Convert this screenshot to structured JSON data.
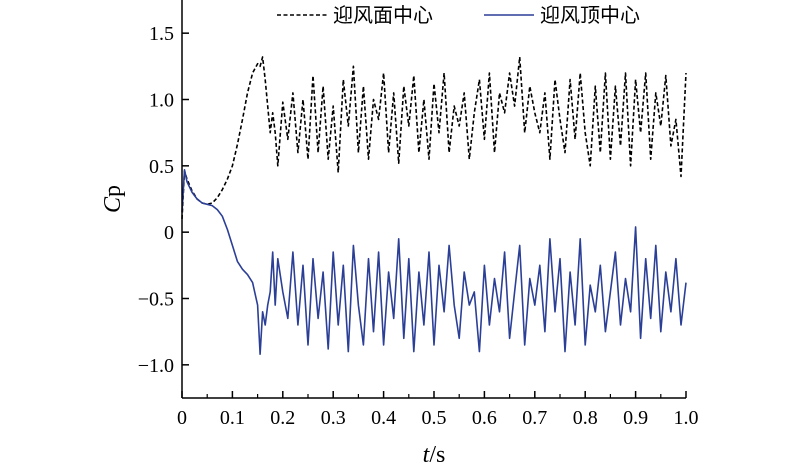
{
  "chart_data": {
    "type": "line",
    "xlabel_italic": "t",
    "xlabel_unit": "/s",
    "ylabel_main": "C",
    "ylabel_sub": "p",
    "xlim": [
      0,
      1.0
    ],
    "ylim": [
      -1.25,
      1.75
    ],
    "xticks": [
      0,
      0.1,
      0.2,
      0.3,
      0.4,
      0.5,
      0.6,
      0.7,
      0.8,
      0.9,
      1.0
    ],
    "xtick_labels": [
      "0",
      "0.1",
      "0.2",
      "0.3",
      "0.4",
      "0.5",
      "0.6",
      "0.7",
      "0.8",
      "0.9",
      "1.0"
    ],
    "yticks": [
      1.5,
      1.0,
      0.5,
      0,
      -0.5,
      -1.0
    ],
    "ytick_labels": [
      "1.5",
      "1.0",
      "0.5",
      "0",
      "−0.5",
      "−1.0"
    ],
    "grid": false,
    "legend_position": "top",
    "series": [
      {
        "name": "迎风面中心",
        "color": "#000000",
        "dash": "dashed",
        "x": [
          0.0,
          0.005,
          0.01,
          0.02,
          0.03,
          0.04,
          0.05,
          0.06,
          0.07,
          0.08,
          0.09,
          0.1,
          0.11,
          0.12,
          0.13,
          0.14,
          0.15,
          0.155,
          0.16,
          0.165,
          0.17,
          0.175,
          0.18,
          0.185,
          0.19,
          0.2,
          0.21,
          0.22,
          0.23,
          0.24,
          0.25,
          0.26,
          0.27,
          0.28,
          0.29,
          0.3,
          0.31,
          0.32,
          0.33,
          0.34,
          0.35,
          0.36,
          0.37,
          0.38,
          0.39,
          0.4,
          0.41,
          0.42,
          0.43,
          0.44,
          0.45,
          0.46,
          0.47,
          0.48,
          0.49,
          0.5,
          0.51,
          0.52,
          0.53,
          0.54,
          0.55,
          0.56,
          0.57,
          0.58,
          0.59,
          0.6,
          0.61,
          0.62,
          0.63,
          0.64,
          0.65,
          0.66,
          0.67,
          0.68,
          0.69,
          0.7,
          0.71,
          0.72,
          0.73,
          0.74,
          0.75,
          0.76,
          0.77,
          0.78,
          0.79,
          0.8,
          0.81,
          0.82,
          0.83,
          0.84,
          0.85,
          0.86,
          0.87,
          0.88,
          0.89,
          0.9,
          0.91,
          0.92,
          0.93,
          0.94,
          0.95,
          0.96,
          0.97,
          0.98,
          0.99,
          1.0
        ],
        "y": [
          0.1,
          0.46,
          0.4,
          0.31,
          0.25,
          0.22,
          0.21,
          0.22,
          0.26,
          0.32,
          0.4,
          0.5,
          0.66,
          0.85,
          1.05,
          1.2,
          1.27,
          1.25,
          1.32,
          1.15,
          0.95,
          0.75,
          0.9,
          0.75,
          0.5,
          0.98,
          0.7,
          1.05,
          0.6,
          1.0,
          0.55,
          1.18,
          0.6,
          1.1,
          0.55,
          0.95,
          0.45,
          1.15,
          0.8,
          1.25,
          0.6,
          1.1,
          0.55,
          1.0,
          0.85,
          1.2,
          0.6,
          1.05,
          0.52,
          1.1,
          0.8,
          1.18,
          0.6,
          1.0,
          0.55,
          1.12,
          0.75,
          1.2,
          0.6,
          0.95,
          0.8,
          1.05,
          0.55,
          0.9,
          1.15,
          0.7,
          1.2,
          0.6,
          1.05,
          0.9,
          1.2,
          0.95,
          1.32,
          0.75,
          1.1,
          0.9,
          0.75,
          1.05,
          0.55,
          1.15,
          0.85,
          0.6,
          1.15,
          0.7,
          1.2,
          0.75,
          0.5,
          1.1,
          0.6,
          1.2,
          0.55,
          1.1,
          0.65,
          1.2,
          0.5,
          1.15,
          0.75,
          1.2,
          0.55,
          1.05,
          0.8,
          1.18,
          0.65,
          0.85,
          0.42,
          1.2
        ]
      },
      {
        "name": "迎风顶中心",
        "color": "#2b3f97",
        "dash": "solid",
        "x": [
          0.0,
          0.005,
          0.01,
          0.02,
          0.03,
          0.04,
          0.05,
          0.06,
          0.07,
          0.08,
          0.09,
          0.1,
          0.11,
          0.12,
          0.13,
          0.14,
          0.15,
          0.155,
          0.16,
          0.165,
          0.17,
          0.175,
          0.18,
          0.185,
          0.19,
          0.2,
          0.21,
          0.22,
          0.23,
          0.24,
          0.25,
          0.26,
          0.27,
          0.28,
          0.29,
          0.3,
          0.31,
          0.32,
          0.33,
          0.34,
          0.35,
          0.36,
          0.37,
          0.38,
          0.39,
          0.4,
          0.41,
          0.42,
          0.43,
          0.44,
          0.45,
          0.46,
          0.47,
          0.48,
          0.49,
          0.5,
          0.51,
          0.52,
          0.53,
          0.54,
          0.55,
          0.56,
          0.57,
          0.58,
          0.59,
          0.6,
          0.61,
          0.62,
          0.63,
          0.64,
          0.65,
          0.66,
          0.67,
          0.68,
          0.69,
          0.7,
          0.71,
          0.72,
          0.73,
          0.74,
          0.75,
          0.76,
          0.77,
          0.78,
          0.79,
          0.8,
          0.81,
          0.82,
          0.83,
          0.84,
          0.85,
          0.86,
          0.87,
          0.88,
          0.89,
          0.9,
          0.91,
          0.92,
          0.93,
          0.94,
          0.95,
          0.96,
          0.97,
          0.98,
          0.99,
          1.0
        ],
        "y": [
          0.15,
          0.47,
          0.38,
          0.3,
          0.25,
          0.22,
          0.21,
          0.2,
          0.17,
          0.12,
          0.02,
          -0.1,
          -0.22,
          -0.28,
          -0.32,
          -0.38,
          -0.55,
          -0.92,
          -0.6,
          -0.7,
          -0.55,
          -0.45,
          -0.15,
          -0.55,
          -0.2,
          -0.45,
          -0.65,
          -0.15,
          -0.7,
          -0.25,
          -0.85,
          -0.2,
          -0.65,
          -0.3,
          -0.88,
          -0.15,
          -0.7,
          -0.25,
          -0.9,
          -0.1,
          -0.55,
          -0.85,
          -0.2,
          -0.75,
          -0.15,
          -0.85,
          -0.3,
          -0.65,
          -0.05,
          -0.8,
          -0.2,
          -0.9,
          -0.3,
          -0.7,
          -0.15,
          -0.85,
          -0.25,
          -0.6,
          -0.1,
          -0.55,
          -0.8,
          -0.3,
          -0.55,
          -0.45,
          -0.9,
          -0.25,
          -0.7,
          -0.35,
          -0.6,
          -0.15,
          -0.8,
          -0.45,
          -0.1,
          -0.85,
          -0.35,
          -0.55,
          -0.25,
          -0.75,
          -0.05,
          -0.6,
          -0.2,
          -0.9,
          -0.3,
          -0.7,
          -0.05,
          -0.85,
          -0.4,
          -0.6,
          -0.25,
          -0.75,
          -0.45,
          -0.15,
          -0.7,
          -0.35,
          -0.6,
          0.04,
          -0.8,
          -0.2,
          -0.65,
          -0.1,
          -0.75,
          -0.3,
          -0.6,
          -0.2,
          -0.7,
          -0.38
        ]
      }
    ]
  }
}
